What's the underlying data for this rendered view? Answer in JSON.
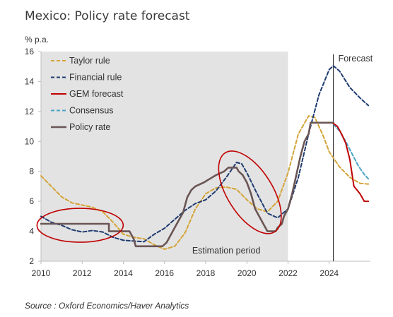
{
  "chart_data": {
    "type": "line",
    "title": "Mexico: Policy rate forecast",
    "ylabel": "% p.a.",
    "xlim": [
      2010,
      2026
    ],
    "ylim": [
      2,
      16
    ],
    "xticks": [
      2010,
      2012,
      2014,
      2016,
      2018,
      2020,
      2022,
      2024
    ],
    "yticks": [
      2,
      4,
      6,
      8,
      10,
      12,
      14,
      16
    ],
    "grid": false,
    "legend_position": "top-left",
    "shaded_region": {
      "from": 2010,
      "to": 2022,
      "label": "Estimation period",
      "color": "#e3e3e3"
    },
    "vertical_line": {
      "x": 2024.2,
      "label": "Forecast"
    },
    "annotations": [
      "Estimation period",
      "Forecast"
    ],
    "highlight_ellipses": [
      {
        "center_x": 2011.9,
        "center_y": 4.4
      },
      {
        "center_x": 2020.15,
        "center_y": 6.6
      }
    ],
    "series": [
      {
        "name": "Taylor rule",
        "color": "#d4a437",
        "dash": "dashed",
        "points": [
          [
            2010,
            7.7
          ],
          [
            2010.5,
            7.0
          ],
          [
            2011,
            6.3
          ],
          [
            2011.5,
            5.9
          ],
          [
            2012,
            5.75
          ],
          [
            2012.5,
            5.6
          ],
          [
            2013,
            5.3
          ],
          [
            2013.5,
            4.6
          ],
          [
            2014,
            3.8
          ],
          [
            2014.5,
            3.6
          ],
          [
            2015,
            3.5
          ],
          [
            2015.5,
            3.1
          ],
          [
            2016,
            2.8
          ],
          [
            2016.5,
            3.0
          ],
          [
            2017,
            3.9
          ],
          [
            2017.5,
            5.5
          ],
          [
            2018,
            6.5
          ],
          [
            2018.5,
            6.9
          ],
          [
            2019,
            6.95
          ],
          [
            2019.5,
            6.8
          ],
          [
            2020,
            6.1
          ],
          [
            2020.5,
            5.5
          ],
          [
            2021,
            5.3
          ],
          [
            2021.5,
            6.0
          ],
          [
            2022,
            7.9
          ],
          [
            2022.5,
            10.5
          ],
          [
            2023,
            11.7
          ],
          [
            2023.3,
            11.6
          ],
          [
            2023.7,
            10.4
          ],
          [
            2024,
            9.3
          ],
          [
            2024.5,
            8.3
          ],
          [
            2025,
            7.6
          ],
          [
            2025.5,
            7.2
          ],
          [
            2025.9,
            7.15
          ]
        ]
      },
      {
        "name": "Financial rule",
        "color": "#1f3b70",
        "dash": "dashed",
        "points": [
          [
            2010,
            5.0
          ],
          [
            2010.5,
            4.6
          ],
          [
            2011,
            4.4
          ],
          [
            2011.5,
            4.1
          ],
          [
            2012,
            3.95
          ],
          [
            2012.5,
            4.05
          ],
          [
            2013,
            3.95
          ],
          [
            2013.5,
            3.6
          ],
          [
            2014,
            3.4
          ],
          [
            2014.5,
            3.35
          ],
          [
            2015,
            3.3
          ],
          [
            2015.5,
            3.8
          ],
          [
            2016,
            4.2
          ],
          [
            2016.5,
            4.8
          ],
          [
            2017,
            5.4
          ],
          [
            2017.5,
            5.85
          ],
          [
            2018,
            6.1
          ],
          [
            2018.5,
            6.7
          ],
          [
            2019,
            7.6
          ],
          [
            2019.5,
            8.6
          ],
          [
            2019.75,
            8.5
          ],
          [
            2020,
            7.9
          ],
          [
            2020.5,
            6.5
          ],
          [
            2021,
            5.2
          ],
          [
            2021.5,
            4.9
          ],
          [
            2022,
            5.5
          ],
          [
            2022.5,
            7.6
          ],
          [
            2023,
            10.5
          ],
          [
            2023.5,
            13.1
          ],
          [
            2024,
            14.8
          ],
          [
            2024.2,
            15.05
          ],
          [
            2024.5,
            14.7
          ],
          [
            2025,
            13.6
          ],
          [
            2025.5,
            12.9
          ],
          [
            2025.9,
            12.4
          ]
        ]
      },
      {
        "name": "GEM forecast",
        "color": "#c00000",
        "dash": "solid",
        "points": [
          [
            2024.2,
            11.2
          ],
          [
            2024.4,
            11.0
          ],
          [
            2024.6,
            10.5
          ],
          [
            2024.8,
            9.9
          ],
          [
            2025,
            8.8
          ],
          [
            2025.2,
            7.0
          ],
          [
            2025.5,
            6.5
          ],
          [
            2025.7,
            6.0
          ],
          [
            2025.9,
            6.0
          ]
        ]
      },
      {
        "name": "Consensus",
        "color": "#4aa3c6",
        "dash": "dashed",
        "points": [
          [
            2024.2,
            11.15
          ],
          [
            2024.5,
            10.7
          ],
          [
            2024.8,
            10.0
          ],
          [
            2025.1,
            9.2
          ],
          [
            2025.4,
            8.4
          ],
          [
            2025.7,
            7.8
          ],
          [
            2025.9,
            7.5
          ]
        ]
      },
      {
        "name": "Policy rate",
        "color": "#6b5555",
        "dash": "solid",
        "points": [
          [
            2010,
            4.5
          ],
          [
            2013.3,
            4.5
          ],
          [
            2013.3,
            4.0
          ],
          [
            2014.3,
            4.0
          ],
          [
            2014.5,
            3.5
          ],
          [
            2014.6,
            3.0
          ],
          [
            2015.9,
            3.0
          ],
          [
            2016.1,
            3.25
          ],
          [
            2016.3,
            3.75
          ],
          [
            2016.5,
            4.25
          ],
          [
            2016.7,
            4.75
          ],
          [
            2016.9,
            5.25
          ],
          [
            2017.1,
            6.25
          ],
          [
            2017.3,
            6.75
          ],
          [
            2017.5,
            7.0
          ],
          [
            2017.9,
            7.25
          ],
          [
            2018.2,
            7.5
          ],
          [
            2018.5,
            7.75
          ],
          [
            2018.9,
            8.0
          ],
          [
            2019.1,
            8.25
          ],
          [
            2019.5,
            8.25
          ],
          [
            2019.6,
            8.0
          ],
          [
            2019.8,
            7.75
          ],
          [
            2020.0,
            7.25
          ],
          [
            2020.2,
            6.5
          ],
          [
            2020.4,
            5.5
          ],
          [
            2020.6,
            5.0
          ],
          [
            2020.8,
            4.5
          ],
          [
            2021.0,
            4.0
          ],
          [
            2021.4,
            4.0
          ],
          [
            2021.5,
            4.25
          ],
          [
            2021.7,
            4.5
          ],
          [
            2021.8,
            5.0
          ],
          [
            2022.0,
            5.5
          ],
          [
            2022.2,
            6.5
          ],
          [
            2022.4,
            7.75
          ],
          [
            2022.6,
            9.0
          ],
          [
            2022.8,
            10.0
          ],
          [
            2023.0,
            10.5
          ],
          [
            2023.1,
            11.25
          ],
          [
            2024.2,
            11.25
          ]
        ]
      }
    ]
  },
  "source": "Source : Oxford Economics/Haver Analytics"
}
